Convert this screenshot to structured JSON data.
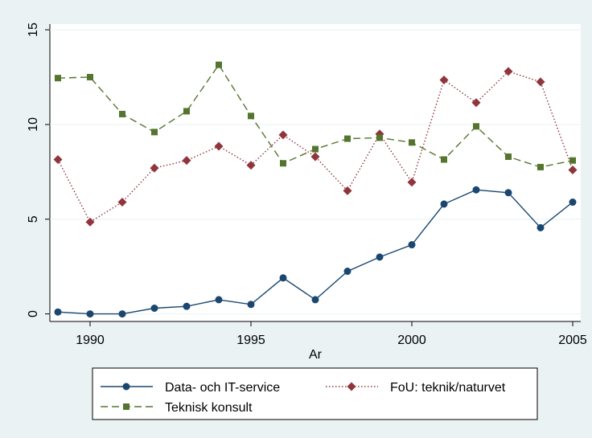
{
  "chart_data": {
    "type": "line",
    "x": [
      1989,
      1990,
      1991,
      1992,
      1993,
      1994,
      1995,
      1996,
      1997,
      1998,
      1999,
      2000,
      2001,
      2002,
      2003,
      2004,
      2005
    ],
    "x_label": "Ar",
    "series": [
      {
        "name": "Data- och IT-service",
        "color": "#1a476f",
        "dash": "solid",
        "marker": "circle",
        "values": [
          0.1,
          0.0,
          0.0,
          0.3,
          0.4,
          0.75,
          0.5,
          1.9,
          0.75,
          2.25,
          3.0,
          3.65,
          5.8,
          6.55,
          6.4,
          4.55,
          5.9
        ]
      },
      {
        "name": "FoU: teknik/naturvet",
        "color": "#90353b",
        "dash": "dotted",
        "marker": "diamond",
        "values": [
          8.15,
          4.85,
          5.9,
          7.7,
          8.1,
          8.85,
          7.85,
          9.45,
          8.3,
          6.5,
          9.5,
          6.95,
          12.35,
          11.15,
          12.8,
          12.25,
          7.6
        ]
      },
      {
        "name": "Teknisk konsult",
        "color": "#55752f",
        "dash": "dashed",
        "marker": "square",
        "values": [
          12.45,
          12.5,
          10.55,
          9.6,
          10.7,
          13.15,
          10.45,
          7.95,
          8.7,
          9.25,
          9.3,
          9.05,
          8.15,
          9.9,
          8.3,
          7.75,
          8.1
        ]
      }
    ],
    "xlim": [
      1988.75,
      2005.25
    ],
    "xticks": [
      1990,
      1995,
      2000,
      2005
    ],
    "ylim": [
      -0.4,
      15.3
    ],
    "yticks": [
      0,
      5,
      10,
      15
    ],
    "grid": true
  }
}
